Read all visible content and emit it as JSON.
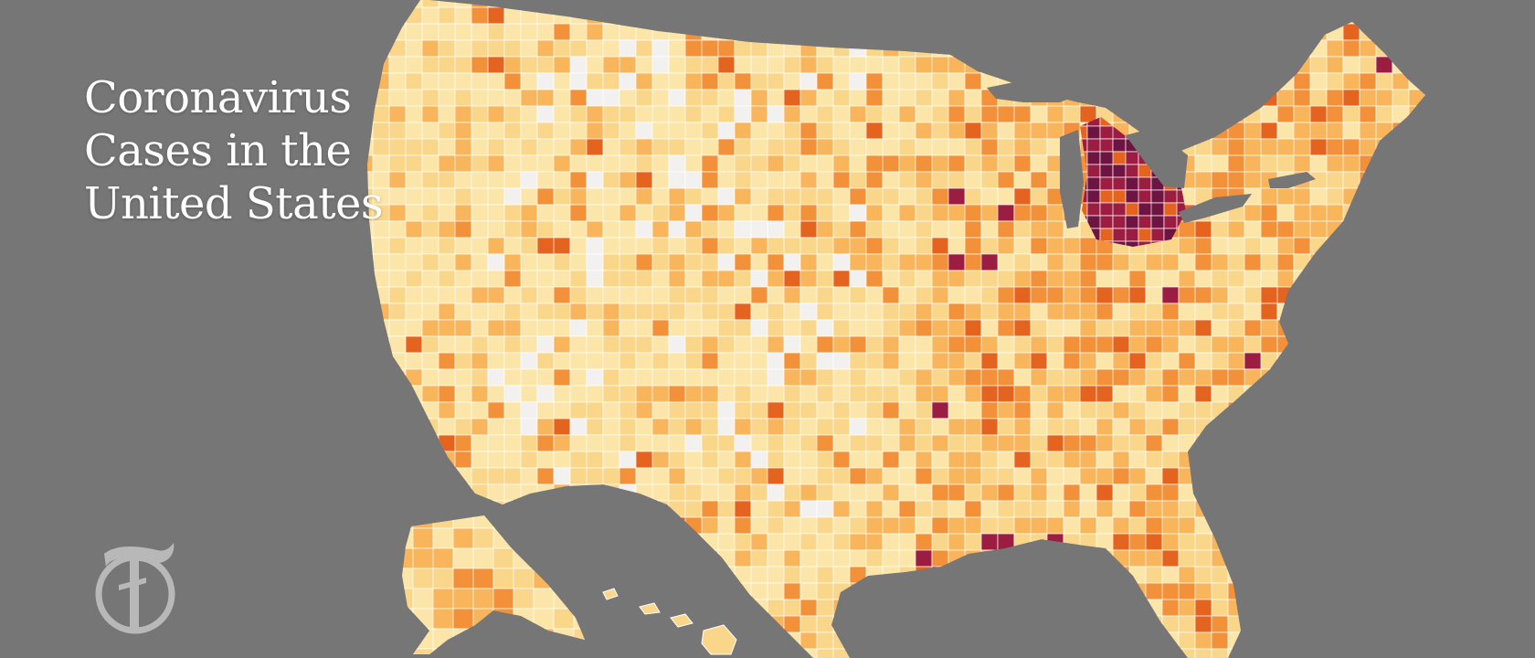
{
  "title": {
    "line1": "Coronavirus",
    "line2": "Cases in the",
    "line3": "United States"
  },
  "logo": {
    "icon": "nyt-t-logo-icon",
    "glyph": "T",
    "color": "#b8b8b8"
  },
  "map": {
    "background": "#767676",
    "border_color": "#ffffff",
    "palette": {
      "none": "#f2f1f0",
      "low": "#fbe5a8",
      "light": "#f9d68a",
      "medium": "#f8b55c",
      "high": "#f2913a",
      "very_high": "#e4631f",
      "severe": "#9b1d42",
      "extreme": "#6e1442"
    }
  }
}
